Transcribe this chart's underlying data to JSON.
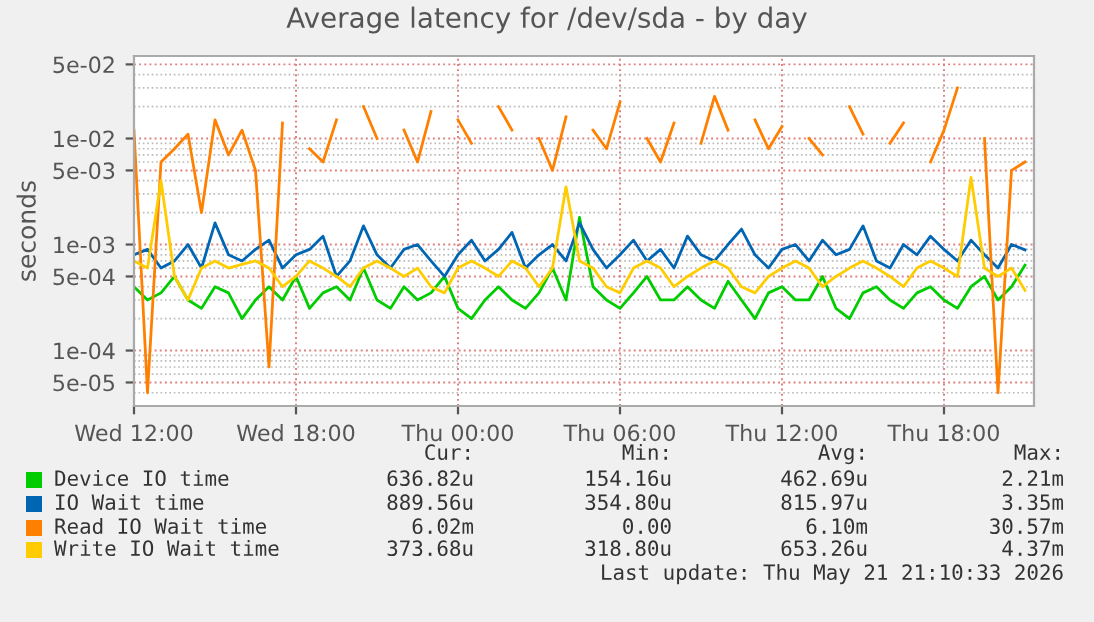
{
  "chart_data": {
    "type": "line",
    "title": "Average latency for /dev/sda - by day",
    "ylabel": "seconds",
    "x": [
      "2026-05-20T12:00",
      "2026-05-20T12:30",
      "2026-05-20T13:00",
      "2026-05-20T13:30",
      "2026-05-20T14:00",
      "2026-05-20T14:30",
      "2026-05-20T15:00",
      "2026-05-20T15:30",
      "2026-05-20T16:00",
      "2026-05-20T16:30",
      "2026-05-20T17:00",
      "2026-05-20T17:30",
      "2026-05-20T18:00",
      "2026-05-20T18:30",
      "2026-05-20T19:00",
      "2026-05-20T19:30",
      "2026-05-20T20:00",
      "2026-05-20T20:30",
      "2026-05-20T21:00",
      "2026-05-20T21:30",
      "2026-05-20T22:00",
      "2026-05-20T22:30",
      "2026-05-20T23:00",
      "2026-05-20T23:30",
      "2026-05-21T00:00",
      "2026-05-21T00:30",
      "2026-05-21T01:00",
      "2026-05-21T01:30",
      "2026-05-21T02:00",
      "2026-05-21T02:30",
      "2026-05-21T03:00",
      "2026-05-21T03:30",
      "2026-05-21T04:00",
      "2026-05-21T04:30",
      "2026-05-21T05:00",
      "2026-05-21T05:30",
      "2026-05-21T06:00",
      "2026-05-21T06:30",
      "2026-05-21T07:00",
      "2026-05-21T07:30",
      "2026-05-21T08:00",
      "2026-05-21T08:30",
      "2026-05-21T09:00",
      "2026-05-21T09:30",
      "2026-05-21T10:00",
      "2026-05-21T10:30",
      "2026-05-21T11:00",
      "2026-05-21T11:30",
      "2026-05-21T12:00",
      "2026-05-21T12:30",
      "2026-05-21T13:00",
      "2026-05-21T13:30",
      "2026-05-21T14:00",
      "2026-05-21T14:30",
      "2026-05-21T15:00",
      "2026-05-21T15:30",
      "2026-05-21T16:00",
      "2026-05-21T16:30",
      "2026-05-21T17:00",
      "2026-05-21T17:30",
      "2026-05-21T18:00",
      "2026-05-21T18:30",
      "2026-05-21T19:00",
      "2026-05-21T19:30",
      "2026-05-21T20:00",
      "2026-05-21T20:30",
      "2026-05-21T21:00"
    ],
    "series": [
      {
        "name": "Device IO time",
        "color": "#00cc00",
        "values": [
          0.0004,
          0.0003,
          0.00035,
          0.0005,
          0.0003,
          0.00025,
          0.0004,
          0.00035,
          0.0002,
          0.0003,
          0.0004,
          0.0003,
          0.0005,
          0.00025,
          0.00035,
          0.0004,
          0.0003,
          0.0006,
          0.0003,
          0.00025,
          0.0004,
          0.0003,
          0.00035,
          0.0005,
          0.00025,
          0.0002,
          0.0003,
          0.0004,
          0.0003,
          0.00025,
          0.00035,
          0.0006,
          0.0003,
          0.0018,
          0.0004,
          0.0003,
          0.00025,
          0.00035,
          0.0005,
          0.0003,
          0.0003,
          0.0004,
          0.0003,
          0.00025,
          0.00045,
          0.0003,
          0.0002,
          0.00035,
          0.0004,
          0.0003,
          0.0003,
          0.0005,
          0.00025,
          0.0002,
          0.00035,
          0.0004,
          0.0003,
          0.00025,
          0.00035,
          0.0004,
          0.0003,
          0.00025,
          0.0004,
          0.0005,
          0.0003,
          0.0004,
          0.00064
        ]
      },
      {
        "name": "IO Wait time",
        "color": "#0066b3",
        "values": [
          0.0008,
          0.0009,
          0.0006,
          0.0007,
          0.001,
          0.0006,
          0.0016,
          0.0008,
          0.0007,
          0.0009,
          0.0011,
          0.0006,
          0.0008,
          0.0009,
          0.0012,
          0.0005,
          0.0007,
          0.0015,
          0.0008,
          0.0006,
          0.0009,
          0.001,
          0.0007,
          0.0005,
          0.0008,
          0.0011,
          0.0007,
          0.0009,
          0.0013,
          0.0006,
          0.0008,
          0.001,
          0.0007,
          0.0016,
          0.0009,
          0.0006,
          0.0008,
          0.0011,
          0.0007,
          0.0009,
          0.0006,
          0.0012,
          0.0008,
          0.0007,
          0.001,
          0.0014,
          0.0008,
          0.0006,
          0.0009,
          0.001,
          0.0007,
          0.0011,
          0.0008,
          0.0009,
          0.0015,
          0.0007,
          0.0006,
          0.001,
          0.0008,
          0.0012,
          0.0009,
          0.0007,
          0.0011,
          0.0008,
          0.0006,
          0.001,
          0.00089
        ]
      },
      {
        "name": "Read IO Wait time",
        "color": "#ff8000",
        "values": [
          0.012,
          4e-05,
          0.006,
          0.008,
          0.011,
          0.002,
          0.015,
          0.007,
          0.012,
          0.005,
          7e-05,
          0.014,
          null,
          0.008,
          0.006,
          0.015,
          null,
          0.02,
          0.01,
          null,
          0.012,
          0.006,
          0.018,
          null,
          0.015,
          0.009,
          null,
          0.02,
          0.012,
          null,
          0.01,
          0.005,
          0.016,
          null,
          0.012,
          0.008,
          0.022,
          null,
          0.01,
          0.006,
          0.014,
          null,
          0.009,
          0.025,
          0.012,
          null,
          0.015,
          0.008,
          0.013,
          null,
          0.01,
          0.007,
          null,
          0.02,
          0.011,
          null,
          0.009,
          0.014,
          null,
          0.006,
          0.012,
          0.03,
          null,
          0.01,
          4e-05,
          0.005,
          0.006
        ]
      },
      {
        "name": "Write IO Wait time",
        "color": "#ffcc00",
        "values": [
          0.0007,
          0.0006,
          0.004,
          0.0005,
          0.0003,
          0.0006,
          0.0007,
          0.0006,
          0.00065,
          0.0007,
          0.0006,
          0.0004,
          0.0005,
          0.0007,
          0.0006,
          0.0005,
          0.0004,
          0.0006,
          0.0007,
          0.0006,
          0.0005,
          0.0006,
          0.0004,
          0.00035,
          0.0006,
          0.0007,
          0.0006,
          0.0005,
          0.0007,
          0.0006,
          0.0004,
          0.0006,
          0.0035,
          0.0007,
          0.0006,
          0.0004,
          0.00035,
          0.0006,
          0.0007,
          0.0006,
          0.0004,
          0.0005,
          0.0006,
          0.0007,
          0.0006,
          0.0004,
          0.00035,
          0.0005,
          0.0006,
          0.0007,
          0.0006,
          0.0004,
          0.0005,
          0.0006,
          0.0007,
          0.0006,
          0.0005,
          0.0004,
          0.0006,
          0.0007,
          0.0006,
          0.0005,
          0.0043,
          0.0006,
          0.0005,
          0.0006,
          0.00037
        ]
      }
    ],
    "log": "y",
    "ylim": [
      3e-05,
      0.06
    ],
    "yticks": [
      {
        "value": 5e-05,
        "label": "5e-05"
      },
      {
        "value": 0.0001,
        "label": "1e-04"
      },
      {
        "value": 0.0005,
        "label": "5e-04"
      },
      {
        "value": 0.001,
        "label": "1e-03"
      },
      {
        "value": 0.005,
        "label": "5e-03"
      },
      {
        "value": 0.01,
        "label": "1e-02"
      },
      {
        "value": 0.05,
        "label": "5e-02"
      }
    ],
    "xlim": [
      "2026-05-20T12:00",
      "2026-05-21T21:20"
    ],
    "xticks": [
      {
        "value": "2026-05-20T12:00",
        "label": "Wed 12:00"
      },
      {
        "value": "2026-05-20T18:00",
        "label": "Wed 18:00"
      },
      {
        "value": "2026-05-21T00:00",
        "label": "Thu 00:00"
      },
      {
        "value": "2026-05-21T06:00",
        "label": "Thu 06:00"
      },
      {
        "value": "2026-05-21T12:00",
        "label": "Thu 12:00"
      },
      {
        "value": "2026-05-21T18:00",
        "label": "Thu 18:00"
      }
    ],
    "grid": true,
    "legend": "bottom",
    "marker": "none",
    "line_style": "solid",
    "annotations": [
      "Cur:",
      "Min:",
      "Avg:",
      "Max:",
      "636.82u",
      "154.16u",
      "462.69u",
      "2.21m",
      "889.56u",
      "354.80u",
      "815.97u",
      "3.35m",
      "6.02m",
      "0.00",
      "6.10m",
      "30.57m",
      "373.68u",
      "318.80u",
      "653.26u",
      "4.37m",
      "Last update: Thu May 21 21:10:33 2026"
    ]
  }
}
